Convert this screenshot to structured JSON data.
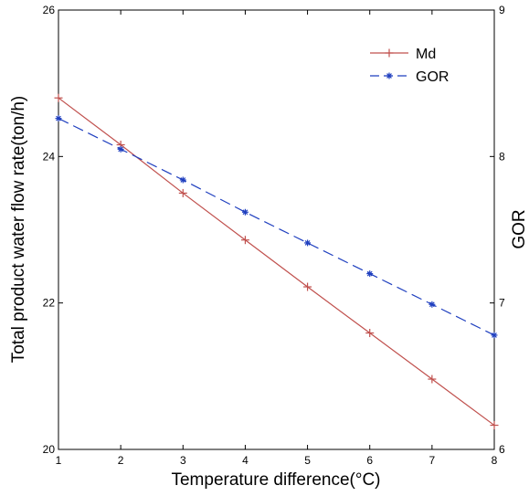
{
  "chart_data": {
    "type": "line",
    "xlabel": "Temperature difference(°C)",
    "ylabel_left": "Total product water flow rate(ton/h)",
    "ylabel_right": "GOR",
    "x": [
      1,
      2,
      3,
      4,
      5,
      6,
      7,
      8
    ],
    "xlim": [
      1,
      8
    ],
    "ylim_left": [
      20,
      26
    ],
    "ylim_right": [
      6,
      9
    ],
    "x_ticks": [
      "1",
      "2",
      "3",
      "4",
      "5",
      "6",
      "7",
      "8"
    ],
    "y_left_ticks": [
      "20",
      "22",
      "24",
      "26"
    ],
    "y_right_ticks": [
      "6",
      "7",
      "8",
      "9"
    ],
    "grid": false,
    "legend_position": "top-right",
    "series": [
      {
        "name": "Md",
        "axis": "left",
        "color": "#c0504d",
        "style": "solid",
        "marker": "plus",
        "values": [
          24.8,
          24.16,
          23.5,
          22.86,
          22.22,
          21.59,
          20.96,
          20.33
        ]
      },
      {
        "name": "GOR",
        "axis": "right",
        "color": "#1f3fbf",
        "style": "dashed",
        "marker": "star",
        "values": [
          8.26,
          8.05,
          7.84,
          7.62,
          7.41,
          7.2,
          6.99,
          6.78
        ]
      }
    ]
  }
}
